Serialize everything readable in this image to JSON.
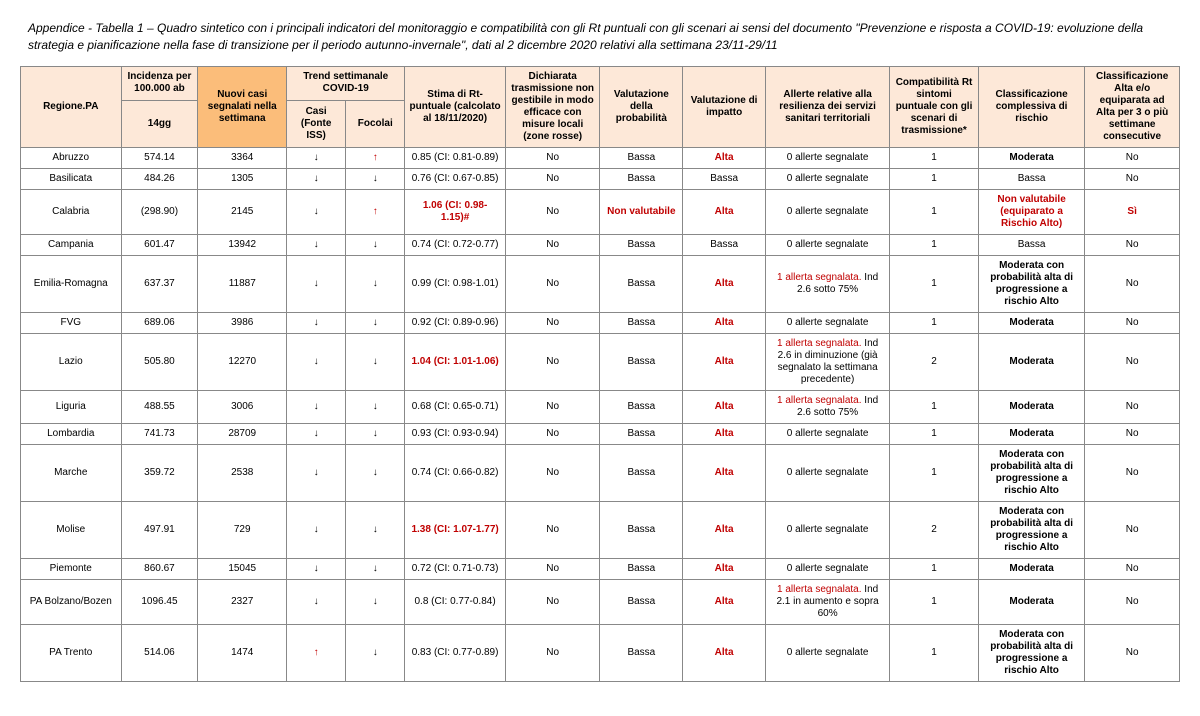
{
  "title": "Appendice - Tabella 1 – Quadro sintetico con i principali indicatori del monitoraggio e compatibilità con gli Rt puntuali con gli scenari ai sensi del documento \"Prevenzione e risposta a COVID-19: evoluzione della strategia e pianificazione nella fase di transizione per il periodo autunno-invernale\", dati al 2 dicembre 2020 relativi alla settimana 23/11-29/11",
  "headers": {
    "regione": "Regione.PA",
    "incidenza_top": "Incidenza per 100.000 ab",
    "incidenza_bot": "14gg",
    "nuovi_casi": "Nuovi casi segnalati nella settimana",
    "trend_top": "Trend settimanale COVID-19",
    "trend_casi": "Casi (Fonte ISS)",
    "trend_focolai": "Focolai",
    "rt": "Stima di Rt-puntuale (calcolato al 18/11/2020)",
    "dichiarata": "Dichiarata trasmissione non gestibile in modo efficace con misure locali (zone rosse)",
    "prob": "Valutazione della probabilità",
    "impatto": "Valutazione di impatto",
    "allerte": "Allerte relative alla resilienza dei servizi sanitari territoriali",
    "compat": "Compatibilità Rt sintomi puntuale con gli scenari di trasmissione*",
    "classif": "Classificazione complessiva di rischio",
    "alta3": "Classificazione Alta e/o equiparata ad Alta per 3 o più settimane consecutive"
  },
  "rows": [
    {
      "regione": "Abruzzo",
      "incidenza": "574.14",
      "nuovi": "3364",
      "casi": "down",
      "focolai": "up",
      "rt": "0.85 (CI: 0.81-0.89)",
      "rt_red": false,
      "dich": "No",
      "prob": "Bassa",
      "prob_red": false,
      "imp": "Alta",
      "imp_red": true,
      "allerte": "0 allerte segnalate",
      "allerta_red": "",
      "compat": "1",
      "classif": "Moderata",
      "classif_bold": true,
      "classif_red": false,
      "alta3": "No",
      "alta3_red": false
    },
    {
      "regione": "Basilicata",
      "incidenza": "484.26",
      "nuovi": "1305",
      "casi": "down",
      "focolai": "down",
      "rt": "0.76 (CI: 0.67-0.85)",
      "rt_red": false,
      "dich": "No",
      "prob": "Bassa",
      "prob_red": false,
      "imp": "Bassa",
      "imp_red": false,
      "allerte": "0 allerte segnalate",
      "allerta_red": "",
      "compat": "1",
      "classif": "Bassa",
      "classif_bold": false,
      "classif_red": false,
      "alta3": "No",
      "alta3_red": false
    },
    {
      "regione": "Calabria",
      "incidenza": "(298.90)",
      "nuovi": "2145",
      "casi": "down",
      "focolai": "up",
      "rt": "1.06 (CI: 0.98-1.15)#",
      "rt_red": true,
      "dich": "No",
      "prob": "Non valutabile",
      "prob_red": true,
      "imp": "Alta",
      "imp_red": true,
      "allerte": "0 allerte segnalate",
      "allerta_red": "",
      "compat": "1",
      "classif": "Non valutabile (equiparato a Rischio Alto)",
      "classif_bold": true,
      "classif_red": true,
      "alta3": "Sì",
      "alta3_red": true
    },
    {
      "regione": "Campania",
      "incidenza": "601.47",
      "nuovi": "13942",
      "casi": "down",
      "focolai": "down",
      "rt": "0.74 (CI: 0.72-0.77)",
      "rt_red": false,
      "dich": "No",
      "prob": "Bassa",
      "prob_red": false,
      "imp": "Bassa",
      "imp_red": false,
      "allerte": "0 allerte segnalate",
      "allerta_red": "",
      "compat": "1",
      "classif": "Bassa",
      "classif_bold": false,
      "classif_red": false,
      "alta3": "No",
      "alta3_red": false
    },
    {
      "regione": "Emilia-Romagna",
      "incidenza": "637.37",
      "nuovi": "11887",
      "casi": "down",
      "focolai": "down",
      "rt": "0.99 (CI: 0.98-1.01)",
      "rt_red": false,
      "dich": "No",
      "prob": "Bassa",
      "prob_red": false,
      "imp": "Alta",
      "imp_red": true,
      "allerte": " Ind 2.6 sotto 75%",
      "allerta_red": "1 allerta segnalata.",
      "compat": "1",
      "classif": "Moderata con probabilità alta di progressione a rischio Alto",
      "classif_bold": true,
      "classif_red": false,
      "alta3": "No",
      "alta3_red": false
    },
    {
      "regione": "FVG",
      "incidenza": "689.06",
      "nuovi": "3986",
      "casi": "down",
      "focolai": "down",
      "rt": "0.92 (CI: 0.89-0.96)",
      "rt_red": false,
      "dich": "No",
      "prob": "Bassa",
      "prob_red": false,
      "imp": "Alta",
      "imp_red": true,
      "allerte": "0 allerte segnalate",
      "allerta_red": "",
      "compat": "1",
      "classif": "Moderata",
      "classif_bold": true,
      "classif_red": false,
      "alta3": "No",
      "alta3_red": false
    },
    {
      "regione": "Lazio",
      "incidenza": "505.80",
      "nuovi": "12270",
      "casi": "down",
      "focolai": "down",
      "rt": "1.04 (CI: 1.01-1.06)",
      "rt_red": true,
      "dich": "No",
      "prob": "Bassa",
      "prob_red": false,
      "imp": "Alta",
      "imp_red": true,
      "allerte": " Ind 2.6 in diminuzione (già segnalato la settimana precedente)",
      "allerta_red": "1 allerta segnalata.",
      "compat": "2",
      "classif": "Moderata",
      "classif_bold": true,
      "classif_red": false,
      "alta3": "No",
      "alta3_red": false
    },
    {
      "regione": "Liguria",
      "incidenza": "488.55",
      "nuovi": "3006",
      "casi": "down",
      "focolai": "down",
      "rt": "0.68 (CI: 0.65-0.71)",
      "rt_red": false,
      "dich": "No",
      "prob": "Bassa",
      "prob_red": false,
      "imp": "Alta",
      "imp_red": true,
      "allerte": " Ind 2.6 sotto 75%",
      "allerta_red": "1 allerta segnalata.",
      "compat": "1",
      "classif": "Moderata",
      "classif_bold": true,
      "classif_red": false,
      "alta3": "No",
      "alta3_red": false
    },
    {
      "regione": "Lombardia",
      "incidenza": "741.73",
      "nuovi": "28709",
      "casi": "down",
      "focolai": "down",
      "rt": "0.93 (CI: 0.93-0.94)",
      "rt_red": false,
      "dich": "No",
      "prob": "Bassa",
      "prob_red": false,
      "imp": "Alta",
      "imp_red": true,
      "allerte": "0 allerte segnalate",
      "allerta_red": "",
      "compat": "1",
      "classif": "Moderata",
      "classif_bold": true,
      "classif_red": false,
      "alta3": "No",
      "alta3_red": false
    },
    {
      "regione": "Marche",
      "incidenza": "359.72",
      "nuovi": "2538",
      "casi": "down",
      "focolai": "down",
      "rt": "0.74 (CI: 0.66-0.82)",
      "rt_red": false,
      "dich": "No",
      "prob": "Bassa",
      "prob_red": false,
      "imp": "Alta",
      "imp_red": true,
      "allerte": "0 allerte segnalate",
      "allerta_red": "",
      "compat": "1",
      "classif": "Moderata con probabilità alta di progressione a rischio Alto",
      "classif_bold": true,
      "classif_red": false,
      "alta3": "No",
      "alta3_red": false
    },
    {
      "regione": "Molise",
      "incidenza": "497.91",
      "nuovi": "729",
      "casi": "down",
      "focolai": "down",
      "rt": "1.38 (CI: 1.07-1.77)",
      "rt_red": true,
      "dich": "No",
      "prob": "Bassa",
      "prob_red": false,
      "imp": "Alta",
      "imp_red": true,
      "allerte": "0 allerte segnalate",
      "allerta_red": "",
      "compat": "2",
      "classif": "Moderata con probabilità alta di progressione a rischio Alto",
      "classif_bold": true,
      "classif_red": false,
      "alta3": "No",
      "alta3_red": false
    },
    {
      "regione": "Piemonte",
      "incidenza": "860.67",
      "nuovi": "15045",
      "casi": "down",
      "focolai": "down",
      "rt": "0.72 (CI: 0.71-0.73)",
      "rt_red": false,
      "dich": "No",
      "prob": "Bassa",
      "prob_red": false,
      "imp": "Alta",
      "imp_red": true,
      "allerte": "0 allerte segnalate",
      "allerta_red": "",
      "compat": "1",
      "classif": "Moderata",
      "classif_bold": true,
      "classif_red": false,
      "alta3": "No",
      "alta3_red": false
    },
    {
      "regione": "PA Bolzano/Bozen",
      "incidenza": "1096.45",
      "nuovi": "2327",
      "casi": "down",
      "focolai": "down",
      "rt": "0.8 (CI: 0.77-0.84)",
      "rt_red": false,
      "dich": "No",
      "prob": "Bassa",
      "prob_red": false,
      "imp": "Alta",
      "imp_red": true,
      "allerte": " Ind 2.1 in aumento e sopra 60%",
      "allerta_red": "1 allerta segnalata.",
      "compat": "1",
      "classif": "Moderata",
      "classif_bold": true,
      "classif_red": false,
      "alta3": "No",
      "alta3_red": false
    },
    {
      "regione": "PA Trento",
      "incidenza": "514.06",
      "nuovi": "1474",
      "casi": "up",
      "focolai": "down",
      "rt": "0.83 (CI: 0.77-0.89)",
      "rt_red": false,
      "dich": "No",
      "prob": "Bassa",
      "prob_red": false,
      "imp": "Alta",
      "imp_red": true,
      "allerte": "0 allerte segnalate",
      "allerta_red": "",
      "compat": "1",
      "classif": "Moderata con probabilità alta di progressione a rischio Alto",
      "classif_bold": true,
      "classif_red": false,
      "alta3": "No",
      "alta3_red": false
    }
  ]
}
